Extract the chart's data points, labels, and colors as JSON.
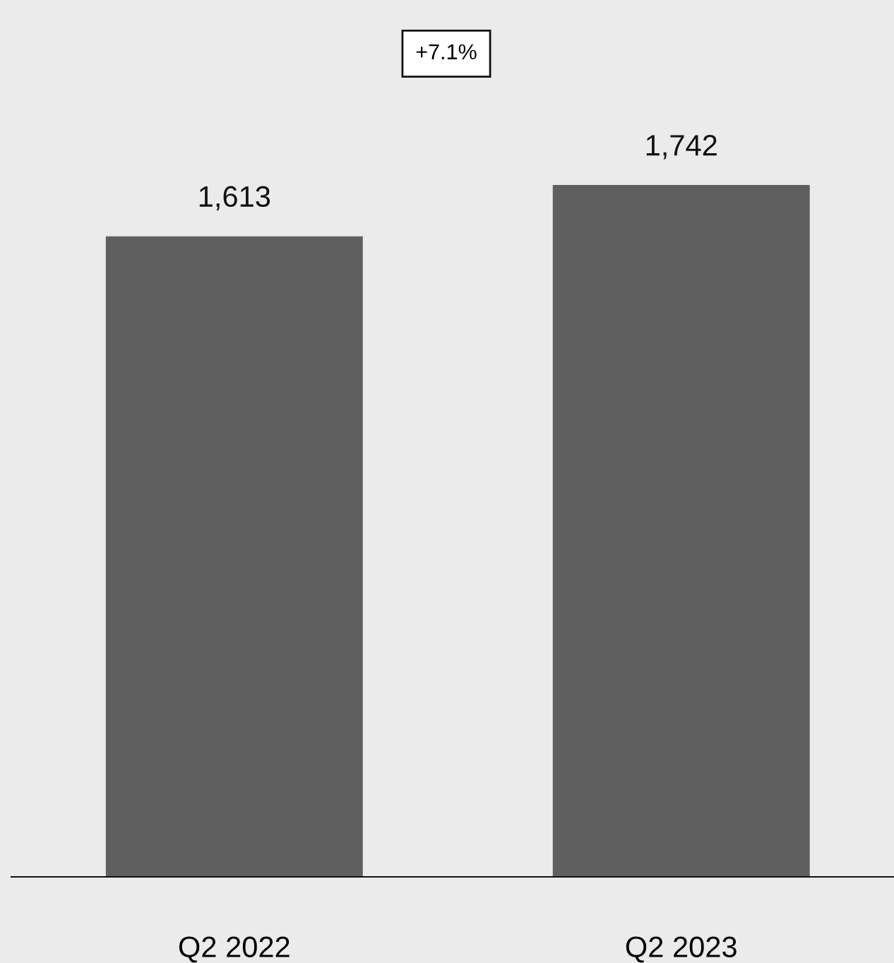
{
  "chart_data": {
    "type": "bar",
    "categories": [
      "Q2 2022",
      "Q2 2023"
    ],
    "values": [
      1613,
      1742
    ],
    "color": "#5f5f5f",
    "value_labels": [
      "1,613",
      "1,742"
    ],
    "grid": false,
    "legend": false,
    "annotations": [
      "+7.1%"
    ]
  }
}
